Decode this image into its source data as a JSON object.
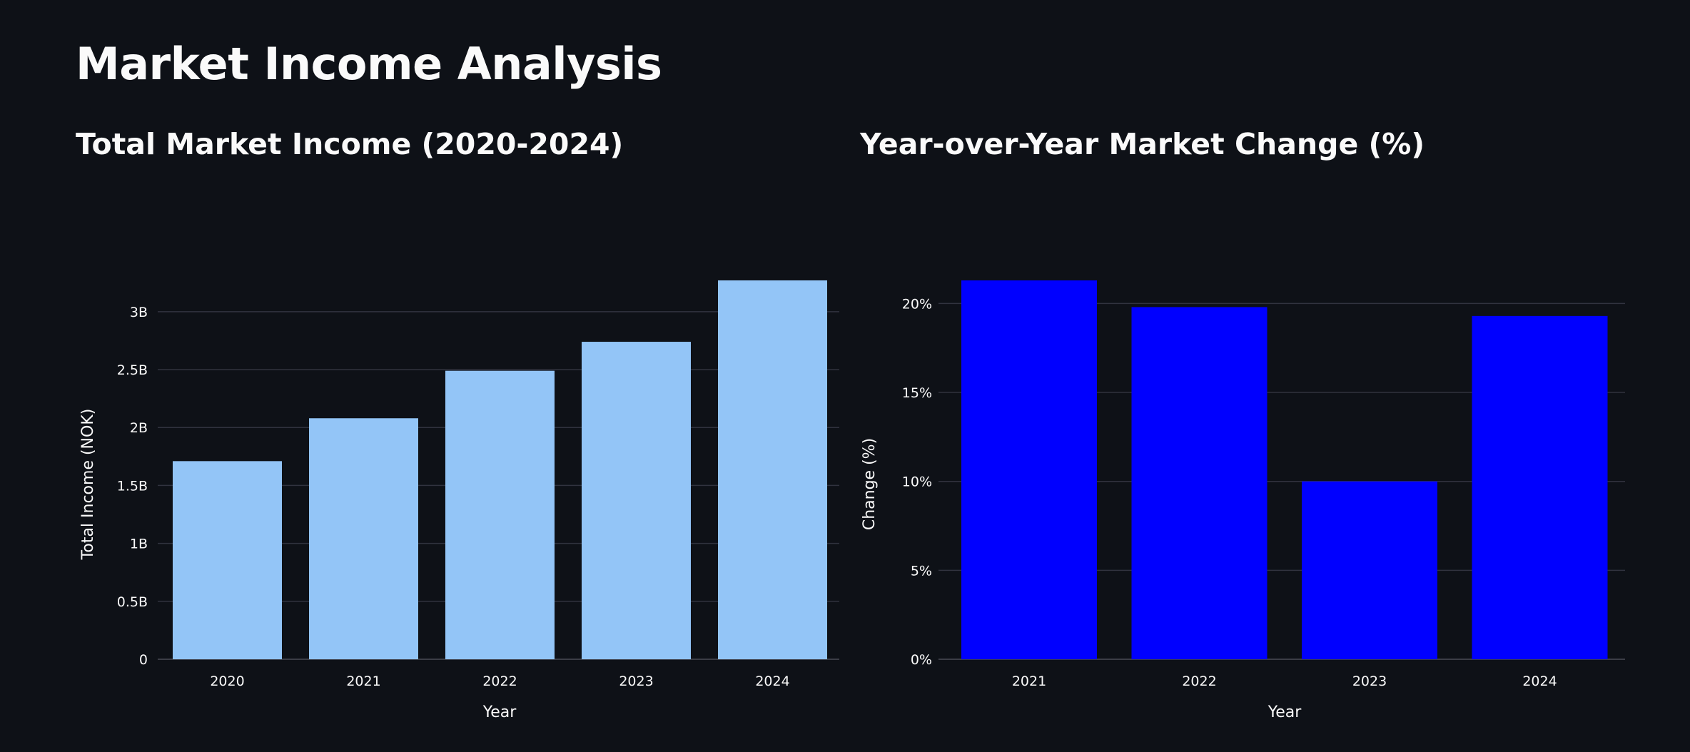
{
  "page": {
    "title": "Market Income Analysis"
  },
  "charts": [
    {
      "title": "Total Market Income (2020-2024)",
      "color": "#93c5f7"
    },
    {
      "title": "Year-over-Year Market Change (%)",
      "color": "#0000ff"
    }
  ],
  "chart_data": [
    {
      "type": "bar",
      "title": "Total Market Income (2020-2024)",
      "categories": [
        "2020",
        "2021",
        "2022",
        "2023",
        "2024"
      ],
      "values": [
        1.71,
        2.08,
        2.49,
        2.74,
        3.27
      ],
      "value_unit": "B",
      "xlabel": "Year",
      "ylabel": "Total Income (NOK)",
      "ylim": [
        0,
        3.27
      ],
      "yticks": [
        0,
        0.5,
        1,
        1.5,
        2,
        2.5,
        3
      ],
      "ytick_labels": [
        "0",
        "0.5B",
        "1B",
        "1.5B",
        "2B",
        "2.5B",
        "3B"
      ],
      "grid": true,
      "color": "#93c5f7"
    },
    {
      "type": "bar",
      "title": "Year-over-Year Market Change (%)",
      "categories": [
        "2021",
        "2022",
        "2023",
        "2024"
      ],
      "values": [
        21.3,
        19.8,
        10.0,
        19.3
      ],
      "xlabel": "Year",
      "ylabel": "Change (%)",
      "ylim": [
        0,
        21.3
      ],
      "yticks": [
        0,
        5,
        10,
        15,
        20
      ],
      "ytick_labels": [
        "0%",
        "5%",
        "10%",
        "15%",
        "20%"
      ],
      "grid": true,
      "color": "#0000ff"
    }
  ]
}
